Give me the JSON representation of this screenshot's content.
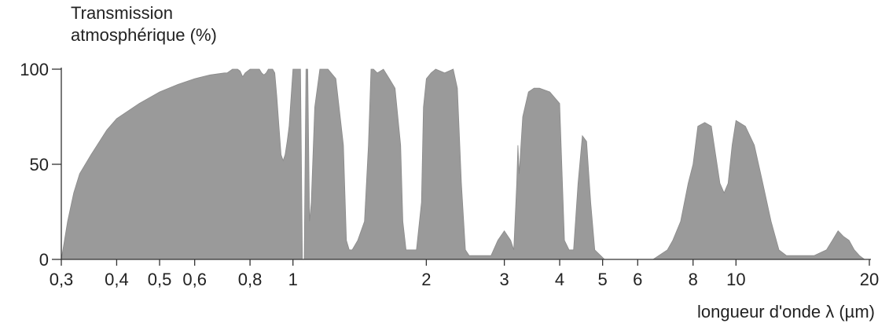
{
  "chart_data": {
    "type": "area",
    "ylabel_lines": [
      "Transmission",
      "atmosphérique (%)"
    ],
    "xlabel": "longueur d'onde λ (µm)",
    "x_scale": "log",
    "xlim": [
      0.3,
      20
    ],
    "ylim": [
      0,
      100
    ],
    "x_ticks": [
      0.3,
      0.4,
      0.5,
      0.6,
      0.8,
      1,
      2,
      3,
      4,
      5,
      6,
      8,
      10,
      20
    ],
    "x_tick_labels": [
      "0,3",
      "0,4",
      "0,5",
      "0,6",
      "0,8",
      "1",
      "2",
      "3",
      "4",
      "5",
      "6",
      "8",
      "10",
      "20"
    ],
    "y_ticks": [
      0,
      50,
      100
    ],
    "y_tick_labels": [
      "0",
      "50",
      "100"
    ],
    "fill_color": "#9a9a9a",
    "series": [
      {
        "x": [
          0.3,
          0.305,
          0.31,
          0.32,
          0.33,
          0.35,
          0.38,
          0.4,
          0.45,
          0.5,
          0.55,
          0.6,
          0.65,
          0.7,
          0.71,
          0.72,
          0.73,
          0.74,
          0.75,
          0.76,
          0.77,
          0.78,
          0.8,
          0.82,
          0.84,
          0.85,
          0.86,
          0.87,
          0.88,
          0.9,
          0.91,
          0.92,
          0.93,
          0.94,
          0.95,
          0.96,
          0.97,
          0.98,
          1.0,
          1.02,
          1.04,
          1.05,
          1.06,
          1.07,
          1.08,
          1.09,
          1.1,
          1.12,
          1.15,
          1.18,
          1.2,
          1.25,
          1.3,
          1.32,
          1.34,
          1.36,
          1.4,
          1.45,
          1.48,
          1.5,
          1.52,
          1.55,
          1.6,
          1.65,
          1.7,
          1.75,
          1.77,
          1.8,
          1.85,
          1.9,
          1.95,
          1.97,
          2.0,
          2.05,
          2.1,
          2.2,
          2.3,
          2.35,
          2.4,
          2.45,
          2.5,
          2.6,
          2.8,
          2.9,
          3.0,
          3.1,
          3.15,
          3.2,
          3.22,
          3.24,
          3.3,
          3.4,
          3.5,
          3.6,
          3.8,
          4.0,
          4.1,
          4.2,
          4.3,
          4.4,
          4.5,
          4.6,
          4.7,
          4.8,
          5.0,
          5.05,
          5.2,
          5.5,
          6.0,
          6.5,
          7.0,
          7.2,
          7.5,
          7.8,
          8.0,
          8.2,
          8.5,
          8.8,
          9.2,
          9.4,
          9.6,
          9.8,
          10.0,
          10.5,
          11.0,
          11.5,
          12.0,
          12.5,
          13.0,
          13.3,
          13.5,
          14.0,
          15.0,
          16.0,
          16.5,
          17.0,
          17.5,
          18.0,
          18.5,
          19.0,
          19.5,
          20.0
        ],
        "y": [
          0,
          10,
          20,
          35,
          45,
          55,
          68,
          74,
          82,
          88,
          92,
          95,
          97,
          98,
          98,
          99,
          100,
          100,
          100,
          99,
          96,
          98,
          100,
          100,
          100,
          98,
          97,
          98,
          100,
          100,
          98,
          85,
          70,
          55,
          52,
          55,
          62,
          70,
          100,
          100,
          100,
          0,
          0,
          100,
          100,
          20,
          30,
          80,
          100,
          100,
          100,
          95,
          60,
          10,
          5,
          5,
          10,
          20,
          60,
          100,
          100,
          98,
          100,
          95,
          90,
          60,
          20,
          5,
          5,
          5,
          30,
          80,
          95,
          98,
          100,
          98,
          100,
          90,
          40,
          5,
          2,
          2,
          2,
          10,
          15,
          10,
          5,
          40,
          60,
          45,
          75,
          88,
          90,
          90,
          88,
          82,
          10,
          5,
          5,
          40,
          65,
          62,
          30,
          5,
          1,
          0,
          0,
          0,
          0,
          0,
          5,
          10,
          20,
          40,
          50,
          70,
          72,
          70,
          40,
          35,
          40,
          60,
          73,
          70,
          60,
          40,
          20,
          5,
          2,
          2,
          2,
          2,
          2,
          5,
          10,
          15,
          12,
          10,
          5,
          2,
          0,
          0
        ]
      }
    ]
  }
}
